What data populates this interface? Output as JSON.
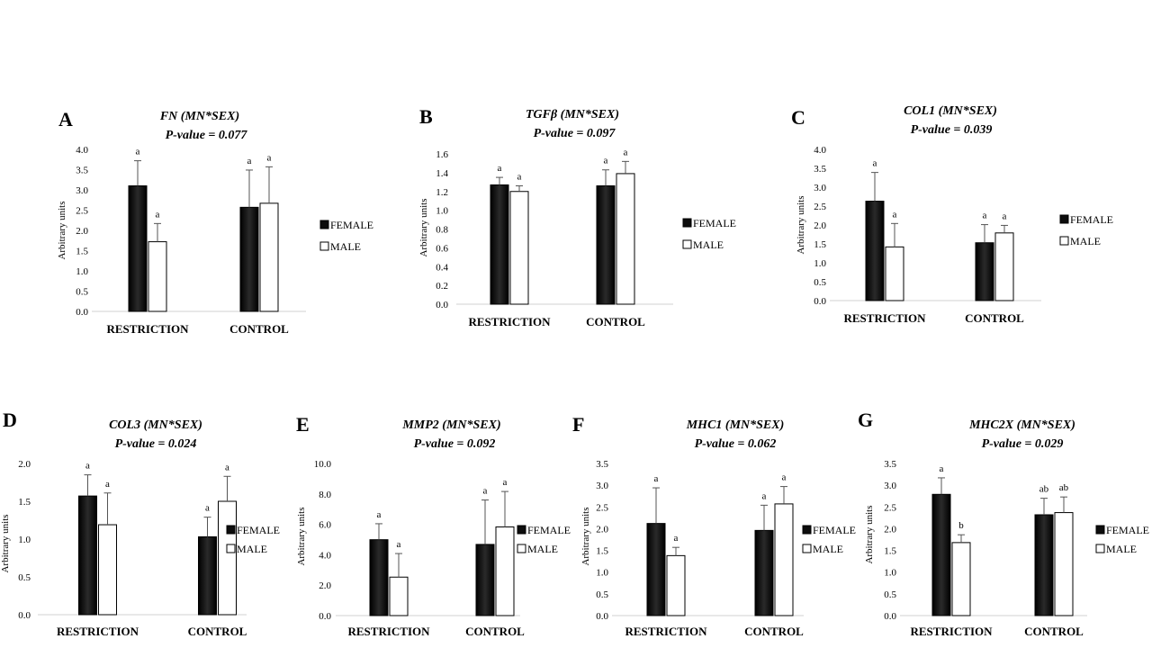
{
  "figure": {
    "ylabel": "Arbitrary units",
    "legend": {
      "entries": [
        "FEMALE",
        "MALE"
      ],
      "colors": [
        "#0d0d0d",
        "#ffffff"
      ]
    }
  },
  "chart_data": [
    {
      "id": "A",
      "type": "bar",
      "title": "FN (MN*SEX)",
      "subtitle": "P-value = 0.077",
      "categories": [
        "RESTRICTION",
        "CONTROL"
      ],
      "series": [
        {
          "name": "FEMALE",
          "values": [
            3.1,
            2.57
          ],
          "errors": [
            0.62,
            0.92
          ],
          "letters": [
            "a",
            "a"
          ]
        },
        {
          "name": "MALE",
          "values": [
            1.72,
            2.67
          ],
          "errors": [
            0.45,
            0.9
          ],
          "letters": [
            "a",
            "a"
          ]
        }
      ],
      "ylim": [
        0,
        4.0
      ],
      "ticks": [
        "0.0",
        "0.5",
        "1.0",
        "1.5",
        "2.0",
        "2.5",
        "3.0",
        "3.5",
        "4.0"
      ],
      "ylabel": "Arbitrary units",
      "legend_position": "right"
    },
    {
      "id": "B",
      "type": "bar",
      "title": "TGFβ (MN*SEX)",
      "subtitle": "P-value = 0.097",
      "categories": [
        "RESTRICTION",
        "CONTROL"
      ],
      "series": [
        {
          "name": "FEMALE",
          "values": [
            1.27,
            1.26
          ],
          "errors": [
            0.08,
            0.17
          ],
          "letters": [
            "a",
            "a"
          ]
        },
        {
          "name": "MALE",
          "values": [
            1.2,
            1.39
          ],
          "errors": [
            0.06,
            0.13
          ],
          "letters": [
            "a",
            "a"
          ]
        }
      ],
      "ylim": [
        0,
        1.6
      ],
      "ticks": [
        "0.0",
        "0.2",
        "0.4",
        "0.6",
        "0.8",
        "1.0",
        "1.2",
        "1.4",
        "1.6"
      ],
      "ylabel": "Arbitrary units",
      "legend_position": "right"
    },
    {
      "id": "C",
      "type": "bar",
      "title": "COL1 (MN*SEX)",
      "subtitle": "P-value = 0.039",
      "categories": [
        "RESTRICTION",
        "CONTROL"
      ],
      "series": [
        {
          "name": "FEMALE",
          "values": [
            2.63,
            1.53
          ],
          "errors": [
            0.76,
            0.48
          ],
          "letters": [
            "a",
            "a"
          ]
        },
        {
          "name": "MALE",
          "values": [
            1.42,
            1.79
          ],
          "errors": [
            0.62,
            0.2
          ],
          "letters": [
            "a",
            "a"
          ]
        }
      ],
      "ylim": [
        0,
        4.0
      ],
      "ticks": [
        "0.0",
        "0.5",
        "1.0",
        "1.5",
        "2.0",
        "2.5",
        "3.0",
        "3.5",
        "4.0"
      ],
      "ylabel": "Arbitrary units",
      "legend_position": "right"
    },
    {
      "id": "D",
      "type": "bar",
      "title": "COL3 (MN*SEX)",
      "subtitle": "P-value = 0.024",
      "categories": [
        "RESTRICTION",
        "CONTROL"
      ],
      "series": [
        {
          "name": "FEMALE",
          "values": [
            1.57,
            1.03
          ],
          "errors": [
            0.28,
            0.26
          ],
          "letters": [
            "a",
            "a"
          ]
        },
        {
          "name": "MALE",
          "values": [
            1.19,
            1.5
          ],
          "errors": [
            0.42,
            0.33
          ],
          "letters": [
            "a",
            "a"
          ]
        }
      ],
      "ylim": [
        0,
        2.0
      ],
      "ticks": [
        "0.0",
        "0.5",
        "1.0",
        "1.5",
        "2.0"
      ],
      "ylabel": "Arbitrary units",
      "legend_position": "right"
    },
    {
      "id": "E",
      "type": "bar",
      "title": "MMP2 (MN*SEX)",
      "subtitle": "P-value = 0.092",
      "categories": [
        "RESTRICTION",
        "CONTROL"
      ],
      "series": [
        {
          "name": "FEMALE",
          "values": [
            4.99,
            4.68
          ],
          "errors": [
            1.05,
            2.92
          ],
          "letters": [
            "a",
            "a"
          ]
        },
        {
          "name": "MALE",
          "values": [
            2.53,
            5.83
          ],
          "errors": [
            1.55,
            2.33
          ],
          "letters": [
            "a",
            "a"
          ]
        }
      ],
      "ylim": [
        0,
        10.0
      ],
      "ticks": [
        "0.0",
        "2.0",
        "4.0",
        "6.0",
        "8.0",
        "10.0"
      ],
      "ylabel": "Arbitrary units",
      "legend_position": "right"
    },
    {
      "id": "F",
      "type": "bar",
      "title": "MHC1 (MN*SEX)",
      "subtitle": "P-value = 0.062",
      "categories": [
        "RESTRICTION",
        "CONTROL"
      ],
      "series": [
        {
          "name": "FEMALE",
          "values": [
            2.12,
            1.96
          ],
          "errors": [
            0.82,
            0.58
          ],
          "letters": [
            "a",
            "a"
          ]
        },
        {
          "name": "MALE",
          "values": [
            1.38,
            2.57
          ],
          "errors": [
            0.19,
            0.4
          ],
          "letters": [
            "a",
            "a"
          ]
        }
      ],
      "ylim": [
        0,
        3.5
      ],
      "ticks": [
        "0.0",
        "0.5",
        "1.0",
        "1.5",
        "2.0",
        "2.5",
        "3.0",
        "3.5"
      ],
      "ylabel": "Arbitrary units",
      "legend_position": "right"
    },
    {
      "id": "G",
      "type": "bar",
      "title": "MHC2X (MN*SEX)",
      "subtitle": "P-value = 0.029",
      "categories": [
        "RESTRICTION",
        "CONTROL"
      ],
      "series": [
        {
          "name": "FEMALE",
          "values": [
            2.79,
            2.32
          ],
          "errors": [
            0.38,
            0.38
          ],
          "letters": [
            "a",
            "ab"
          ]
        },
        {
          "name": "MALE",
          "values": [
            1.68,
            2.37
          ],
          "errors": [
            0.18,
            0.36
          ],
          "letters": [
            "b",
            "ab"
          ]
        }
      ],
      "ylim": [
        0,
        3.5
      ],
      "ticks": [
        "0.0",
        "0.5",
        "1.0",
        "1.5",
        "2.0",
        "2.5",
        "3.0",
        "3.5"
      ],
      "ylabel": "Arbitrary units",
      "legend_position": "right"
    }
  ]
}
